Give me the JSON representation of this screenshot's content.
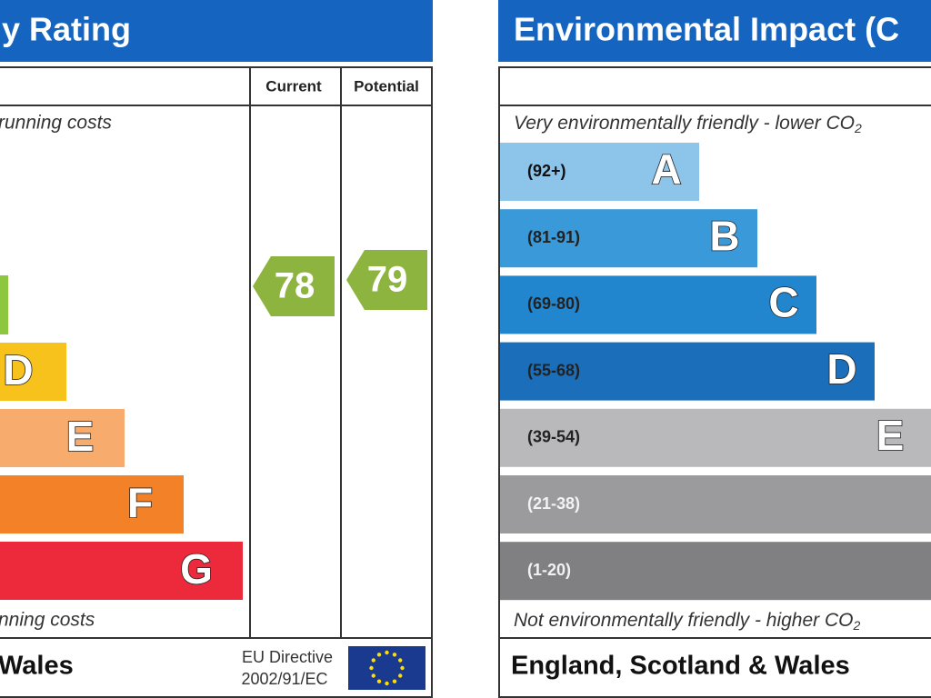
{
  "energy": {
    "title": "y Rating",
    "columns": [
      "Current",
      "Potential"
    ],
    "top_note": "running costs",
    "bands": [
      {
        "letter": "D"
      },
      {
        "letter": "E"
      },
      {
        "letter": "F"
      },
      {
        "letter": "G"
      }
    ],
    "current": 78,
    "potential": 79,
    "bottom_note": "nning costs",
    "region": "Wales",
    "directive": [
      "EU Directive",
      "2002/91/EC"
    ]
  },
  "environmental": {
    "title": "Environmental Impact (C",
    "top_note": "Very environmentally friendly - lower CO",
    "top_note_sub": "2",
    "bands": [
      {
        "range": "(92+)",
        "letter": "A"
      },
      {
        "range": "(81-91)",
        "letter": "B"
      },
      {
        "range": "(69-80)",
        "letter": "C"
      },
      {
        "range": "(55-68)",
        "letter": "D"
      },
      {
        "range": "(39-54)",
        "letter": "E"
      },
      {
        "range": "(21-38)"
      },
      {
        "range": "(1-20)"
      }
    ],
    "bottom_note": "Not environmentally friendly - higher CO",
    "bottom_note_sub": "2",
    "region": "England, Scotland & Wales"
  }
}
